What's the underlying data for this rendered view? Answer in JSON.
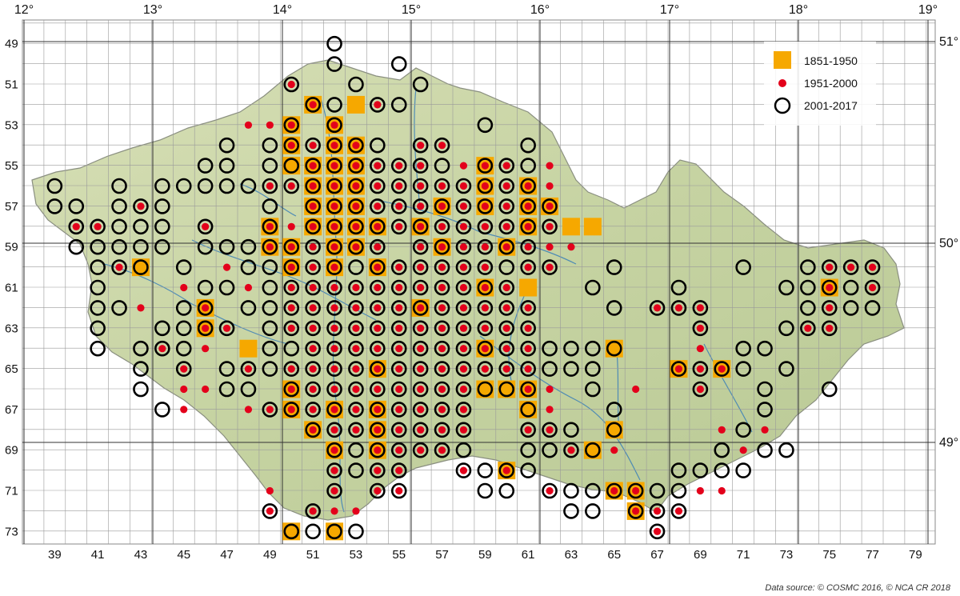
{
  "title": "",
  "longitude_labels": [
    "12°",
    "13°",
    "14°",
    "15°",
    "16°",
    "17°",
    "18°",
    "19°"
  ],
  "latitude_labels": [
    "51°",
    "50°",
    "49°"
  ],
  "grid_col_labels": [
    "39",
    "41",
    "43",
    "45",
    "47",
    "49",
    "51",
    "53",
    "55",
    "57",
    "59",
    "61",
    "63",
    "65",
    "67",
    "69",
    "71",
    "73",
    "75",
    "77",
    "79"
  ],
  "grid_row_labels": [
    "49",
    "51",
    "53",
    "55",
    "57",
    "59",
    "61",
    "63",
    "65",
    "67",
    "69",
    "71",
    "73"
  ],
  "legend": {
    "items": [
      {
        "label": "1851-1950",
        "symbol": "square",
        "color": "#f6a800"
      },
      {
        "label": "1951-2000",
        "symbol": "dot",
        "color": "#e3001b"
      },
      {
        "label": "2001-2017",
        "symbol": "circle",
        "color": "#000000"
      }
    ]
  },
  "source_text": "Data source: © COSMC 2016, © NCA CR 2018",
  "colors": {
    "land": "#c9d6a8",
    "grid": "#9a9a9a",
    "river": "#3a7fb8",
    "square": "#f6a800",
    "dot": "#e3001b",
    "circle": "#000000"
  },
  "records": {
    "49": {
      "circle": [
        52
      ]
    },
    "50": {
      "circle": [
        52,
        55
      ]
    },
    "51": {
      "dot": [
        50
      ],
      "circle": [
        50,
        53,
        56
      ]
    },
    "52": {
      "square": [
        51,
        53
      ],
      "dot": [
        51,
        54
      ],
      "circle": [
        51,
        52,
        54,
        55
      ]
    },
    "53": {
      "square": [
        50,
        52
      ],
      "dot": [
        48,
        49,
        50,
        52
      ],
      "circle": [
        50,
        52,
        59
      ]
    },
    "54": {
      "square": [
        50,
        52,
        53
      ],
      "dot": [
        50,
        51,
        52,
        53,
        56,
        57
      ],
      "circle": [
        47,
        49,
        50,
        51,
        52,
        53,
        54,
        56,
        57,
        61
      ]
    },
    "55": {
      "square": [
        50,
        51,
        52,
        53,
        59
      ],
      "dot": [
        51,
        52,
        53,
        54,
        55,
        56,
        58,
        59,
        60,
        62
      ],
      "circle": [
        46,
        47,
        49,
        50,
        51,
        52,
        53,
        54,
        55,
        56,
        57,
        59,
        60,
        61
      ]
    },
    "56": {
      "square": [
        51,
        52,
        53,
        59,
        61
      ],
      "dot": [
        49,
        50,
        51,
        52,
        53,
        54,
        55,
        56,
        57,
        58,
        59,
        60,
        61,
        62
      ],
      "circle": [
        39,
        42,
        44,
        45,
        46,
        47,
        48,
        49,
        50,
        51,
        52,
        53,
        54,
        55,
        56,
        57,
        58,
        59,
        60,
        61
      ]
    },
    "57": {
      "square": [
        51,
        52,
        53,
        57,
        59,
        61,
        62
      ],
      "dot": [
        43,
        51,
        52,
        53,
        54,
        55,
        56,
        57,
        58,
        59,
        60,
        61,
        62
      ],
      "circle": [
        39,
        40,
        42,
        43,
        44,
        49,
        51,
        52,
        53,
        54,
        55,
        56,
        57,
        58,
        59,
        60,
        61,
        62
      ]
    },
    "58": {
      "square": [
        49,
        51,
        52,
        53,
        54,
        56,
        61,
        63,
        64
      ],
      "dot": [
        40,
        41,
        46,
        49,
        50,
        51,
        52,
        53,
        54,
        55,
        56,
        57,
        58,
        59,
        60,
        61,
        62
      ],
      "circle": [
        40,
        41,
        42,
        43,
        44,
        46,
        49,
        51,
        52,
        53,
        54,
        55,
        56,
        57,
        58,
        59,
        60,
        61,
        62
      ]
    },
    "59": {
      "square": [
        49,
        50,
        52,
        53,
        57,
        60
      ],
      "dot": [
        49,
        50,
        51,
        52,
        53,
        54,
        56,
        57,
        58,
        59,
        60,
        61,
        62,
        63
      ],
      "circle": [
        40,
        41,
        42,
        43,
        44,
        46,
        47,
        48,
        49,
        50,
        51,
        52,
        53,
        54,
        56,
        57,
        58,
        59,
        60,
        61
      ]
    },
    "60": {
      "square": [
        43,
        50,
        52,
        54
      ],
      "dot": [
        42,
        47,
        50,
        51,
        52,
        54,
        55,
        56,
        57,
        58,
        59,
        61,
        62,
        75,
        76,
        77
      ],
      "circle": [
        41,
        42,
        43,
        45,
        48,
        49,
        50,
        51,
        52,
        53,
        54,
        55,
        56,
        57,
        58,
        59,
        60,
        61,
        62,
        65,
        71,
        74,
        75,
        76,
        77
      ]
    },
    "61": {
      "square": [
        59,
        61,
        75
      ],
      "dot": [
        45,
        48,
        50,
        51,
        52,
        53,
        54,
        55,
        56,
        57,
        58,
        59,
        60,
        75,
        77
      ],
      "circle": [
        41,
        46,
        47,
        49,
        50,
        51,
        52,
        53,
        54,
        55,
        56,
        57,
        58,
        59,
        60,
        64,
        68,
        73,
        74,
        75,
        76,
        77
      ]
    },
    "62": {
      "square": [
        46,
        56
      ],
      "dot": [
        43,
        46,
        50,
        51,
        52,
        53,
        54,
        55,
        56,
        57,
        58,
        59,
        60,
        61,
        67,
        68,
        69,
        75
      ],
      "circle": [
        41,
        42,
        45,
        46,
        48,
        49,
        50,
        51,
        52,
        53,
        54,
        55,
        56,
        57,
        58,
        59,
        60,
        61,
        65,
        67,
        68,
        69,
        74,
        75,
        76,
        77
      ]
    },
    "63": {
      "square": [
        46
      ],
      "dot": [
        46,
        47,
        50,
        51,
        52,
        53,
        54,
        55,
        56,
        57,
        58,
        59,
        60,
        61,
        69,
        74,
        75
      ],
      "circle": [
        41,
        44,
        45,
        46,
        47,
        49,
        50,
        51,
        52,
        53,
        54,
        55,
        56,
        57,
        58,
        59,
        60,
        61,
        69,
        73,
        74,
        75
      ]
    },
    "64": {
      "square": [
        48,
        59,
        65
      ],
      "dot": [
        44,
        46,
        51,
        52,
        53,
        54,
        55,
        56,
        57,
        58,
        59,
        60,
        61,
        69
      ],
      "circle": [
        41,
        43,
        44,
        45,
        49,
        50,
        51,
        52,
        53,
        54,
        55,
        56,
        57,
        58,
        59,
        60,
        61,
        62,
        63,
        64,
        65,
        71,
        72
      ]
    },
    "65": {
      "square": [
        54,
        68,
        70
      ],
      "dot": [
        45,
        48,
        50,
        51,
        52,
        53,
        54,
        55,
        56,
        57,
        58,
        59,
        60,
        61,
        68,
        69,
        70
      ],
      "circle": [
        43,
        45,
        47,
        48,
        49,
        50,
        51,
        52,
        53,
        54,
        55,
        56,
        57,
        58,
        59,
        60,
        61,
        62,
        63,
        64,
        68,
        69,
        70,
        71,
        73
      ]
    },
    "66": {
      "square": [
        50,
        59,
        60,
        61
      ],
      "dot": [
        45,
        46,
        50,
        51,
        52,
        53,
        54,
        55,
        56,
        57,
        58,
        61,
        62,
        66,
        69
      ],
      "circle": [
        43,
        47,
        48,
        50,
        51,
        52,
        53,
        54,
        55,
        56,
        57,
        58,
        59,
        60,
        61,
        64,
        69,
        72,
        75
      ]
    },
    "67": {
      "square": [
        50,
        52,
        54,
        61
      ],
      "dot": [
        45,
        48,
        49,
        50,
        51,
        52,
        53,
        54,
        55,
        56,
        57,
        58,
        62
      ],
      "circle": [
        44,
        49,
        50,
        51,
        52,
        53,
        54,
        55,
        56,
        57,
        58,
        61,
        65,
        72
      ]
    },
    "68": {
      "square": [
        51,
        54,
        65
      ],
      "dot": [
        51,
        52,
        53,
        54,
        55,
        56,
        57,
        58,
        61,
        62,
        70,
        72
      ],
      "circle": [
        51,
        52,
        53,
        54,
        55,
        56,
        57,
        58,
        61,
        62,
        63,
        65,
        71
      ]
    },
    "69": {
      "square": [
        52,
        54,
        64
      ],
      "dot": [
        52,
        54,
        55,
        56,
        57,
        63,
        65,
        71
      ],
      "circle": [
        52,
        53,
        54,
        55,
        56,
        57,
        58,
        61,
        62,
        63,
        64,
        70,
        72,
        73
      ]
    },
    "70": {
      "square": [
        60
      ],
      "dot": [
        52,
        54,
        55,
        58,
        60
      ],
      "circle": [
        52,
        53,
        54,
        55,
        58,
        59,
        60,
        61,
        68,
        69,
        70,
        71
      ]
    },
    "71": {
      "square": [
        65,
        66
      ],
      "dot": [
        49,
        52,
        54,
        55,
        62,
        65,
        66,
        69,
        70
      ],
      "circle": [
        52,
        54,
        55,
        59,
        60,
        62,
        63,
        64,
        65,
        66,
        67,
        68
      ]
    },
    "72": {
      "square": [
        66
      ],
      "dot": [
        49,
        51,
        52,
        53,
        66,
        67,
        68
      ],
      "circle": [
        49,
        51,
        63,
        64,
        66,
        67,
        68
      ]
    },
    "73": {
      "square": [
        50,
        52
      ],
      "dot": [
        67
      ],
      "circle": [
        50,
        51,
        52,
        53,
        67
      ]
    }
  }
}
